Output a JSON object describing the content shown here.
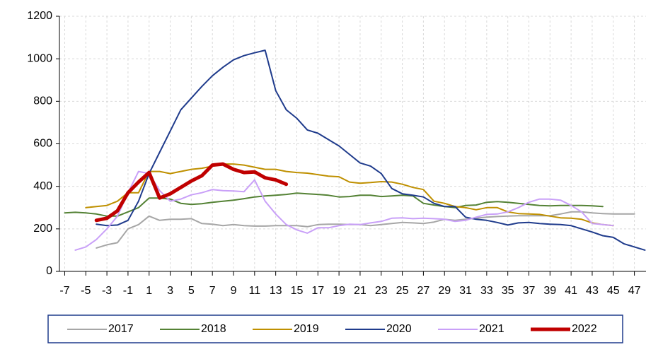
{
  "chart_data": {
    "type": "line",
    "xlim": [
      -7.5,
      48.1
    ],
    "xticks": [
      -7,
      -5,
      -3,
      -1,
      1,
      3,
      5,
      7,
      9,
      11,
      13,
      15,
      17,
      19,
      21,
      23,
      25,
      27,
      29,
      31,
      33,
      35,
      37,
      39,
      41,
      43,
      45,
      47
    ],
    "ylim": [
      0,
      1200
    ],
    "yticks": [
      0,
      200,
      400,
      600,
      800,
      1000,
      1200
    ],
    "grid": true,
    "legend": "bottom",
    "series": [
      {
        "name": "2017",
        "color": "#a6a6a6",
        "line_width": 2,
        "x": [
          -4,
          -3,
          -2,
          -1,
          0,
          1,
          2,
          3,
          4,
          5,
          6,
          7,
          8,
          9,
          10,
          11,
          12,
          13,
          14,
          15,
          16,
          17,
          18,
          19,
          20,
          21,
          22,
          23,
          24,
          25,
          26,
          27,
          28,
          29,
          30,
          31,
          32,
          33,
          34,
          35,
          36,
          37,
          38,
          39,
          40,
          41,
          42,
          43,
          44,
          45,
          46,
          47
        ],
        "values": [
          110,
          125,
          135,
          200,
          220,
          260,
          240,
          245,
          245,
          248,
          225,
          222,
          215,
          220,
          215,
          213,
          213,
          215,
          215,
          215,
          210,
          220,
          222,
          222,
          220,
          220,
          215,
          220,
          225,
          230,
          228,
          225,
          232,
          245,
          240,
          245,
          250,
          255,
          258,
          260,
          262,
          262,
          262,
          262,
          270,
          280,
          280,
          275,
          272,
          270,
          270,
          270
        ]
      },
      {
        "name": "2018",
        "color": "#548235",
        "line_width": 2,
        "x": [
          -7,
          -6,
          -5,
          -4,
          -3,
          -2,
          -1,
          0,
          1,
          2,
          3,
          4,
          5,
          6,
          7,
          8,
          9,
          10,
          11,
          12,
          13,
          14,
          15,
          16,
          17,
          18,
          19,
          20,
          21,
          22,
          23,
          24,
          25,
          26,
          27,
          28,
          29,
          30,
          31,
          32,
          33,
          34,
          35,
          36,
          37,
          38,
          39,
          40,
          41,
          42,
          43,
          44
        ],
        "values": [
          275,
          278,
          275,
          270,
          260,
          260,
          280,
          300,
          345,
          345,
          340,
          320,
          315,
          318,
          325,
          330,
          335,
          342,
          350,
          355,
          358,
          362,
          368,
          365,
          362,
          358,
          350,
          352,
          358,
          358,
          352,
          355,
          358,
          355,
          320,
          312,
          305,
          300,
          310,
          312,
          325,
          328,
          325,
          320,
          315,
          310,
          308,
          310,
          310,
          310,
          308,
          305
        ]
      },
      {
        "name": "2019",
        "color": "#bf9000",
        "line_width": 2,
        "x": [
          -5,
          -4,
          -3,
          -2,
          -1,
          0,
          1,
          2,
          3,
          4,
          5,
          6,
          7,
          8,
          9,
          10,
          11,
          12,
          13,
          14,
          15,
          16,
          17,
          18,
          19,
          20,
          21,
          22,
          23,
          24,
          25,
          26,
          27,
          28,
          29,
          30,
          31,
          32,
          33,
          34,
          35,
          36,
          37,
          38,
          39,
          40,
          41,
          42,
          43,
          44,
          45
        ],
        "values": [
          300,
          305,
          310,
          330,
          370,
          370,
          470,
          470,
          460,
          470,
          480,
          485,
          495,
          505,
          505,
          500,
          490,
          480,
          480,
          470,
          465,
          462,
          455,
          448,
          445,
          420,
          415,
          418,
          422,
          420,
          410,
          395,
          385,
          330,
          320,
          305,
          300,
          290,
          300,
          300,
          280,
          272,
          270,
          268,
          260,
          252,
          250,
          245,
          228,
          220,
          215
        ]
      },
      {
        "name": "2020",
        "color": "#1f3b8c",
        "line_width": 2,
        "x": [
          -4,
          -3,
          -2,
          -1,
          0,
          1,
          2,
          3,
          4,
          5,
          6,
          7,
          8,
          9,
          10,
          11,
          12,
          13,
          14,
          15,
          16,
          17,
          18,
          19,
          20,
          21,
          22,
          23,
          24,
          25,
          26,
          27,
          28,
          29,
          30,
          31,
          32,
          33,
          34,
          35,
          36,
          37,
          38,
          39,
          40,
          41,
          42,
          43,
          44,
          45,
          46,
          47,
          48
        ],
        "values": [
          222,
          215,
          218,
          240,
          330,
          460,
          560,
          660,
          760,
          815,
          870,
          920,
          960,
          995,
          1015,
          1028,
          1040,
          850,
          760,
          720,
          665,
          650,
          620,
          590,
          550,
          510,
          495,
          460,
          390,
          365,
          358,
          350,
          320,
          305,
          305,
          255,
          245,
          240,
          230,
          218,
          228,
          230,
          225,
          222,
          220,
          215,
          200,
          185,
          168,
          160,
          130,
          115,
          100
        ]
      },
      {
        "name": "2021",
        "color": "#c9a0f8",
        "line_width": 2,
        "x": [
          -6,
          -5,
          -4,
          -3,
          -2,
          -1,
          0,
          1,
          2,
          3,
          4,
          5,
          6,
          7,
          8,
          9,
          10,
          11,
          12,
          13,
          14,
          15,
          16,
          17,
          18,
          19,
          20,
          21,
          22,
          23,
          24,
          25,
          26,
          27,
          28,
          29,
          30,
          31,
          32,
          33,
          34,
          35,
          36,
          37,
          38,
          39,
          40,
          41,
          42,
          43,
          44,
          45
        ],
        "values": [
          100,
          115,
          150,
          200,
          260,
          370,
          470,
          460,
          380,
          330,
          340,
          360,
          370,
          385,
          380,
          378,
          375,
          430,
          330,
          270,
          220,
          195,
          180,
          205,
          205,
          215,
          222,
          220,
          228,
          235,
          250,
          252,
          248,
          250,
          248,
          245,
          235,
          240,
          255,
          268,
          270,
          280,
          300,
          325,
          340,
          340,
          335,
          310,
          280,
          225,
          220,
          215
        ]
      },
      {
        "name": "2022",
        "color": "#c00000",
        "line_width": 5,
        "x": [
          -4,
          -3,
          -2,
          -1,
          0,
          1,
          2,
          3,
          4,
          5,
          6,
          7,
          8,
          9,
          10,
          11,
          12,
          13,
          14
        ],
        "values": [
          240,
          250,
          285,
          370,
          420,
          465,
          345,
          365,
          395,
          425,
          450,
          500,
          505,
          480,
          465,
          468,
          440,
          430,
          410
        ]
      }
    ]
  }
}
